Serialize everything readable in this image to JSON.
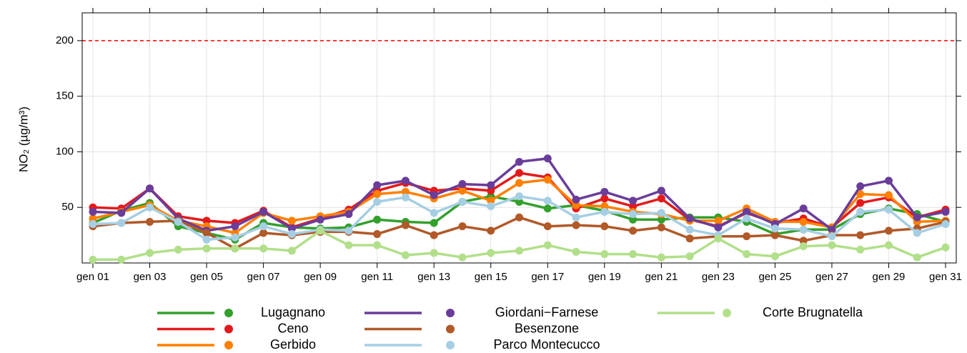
{
  "chart_data": {
    "type": "line",
    "y_label": "NO₂ (µg/m³)",
    "categories": [
      "gen 01",
      null,
      "gen 03",
      null,
      "gen 05",
      null,
      "gen 07",
      null,
      "gen 09",
      null,
      "gen 11",
      null,
      "gen 13",
      null,
      "gen 15",
      null,
      "gen 17",
      null,
      "gen 19",
      null,
      "gen 21",
      null,
      "gen 23",
      null,
      "gen 25",
      null,
      "gen 27",
      null,
      "gen 29",
      null,
      "gen 31"
    ],
    "ylim": [
      0,
      225
    ],
    "yticks": [
      50,
      100,
      150,
      200
    ],
    "grid": true,
    "threshold": {
      "value": 200,
      "color": "#ff0000"
    },
    "legend": "bottom",
    "series": [
      {
        "name": "Lugagnano",
        "color": "#33a02c",
        "values": [
          36,
          47,
          54,
          33,
          27,
          21,
          36,
          32,
          31,
          32,
          39,
          37,
          36,
          55,
          60,
          55,
          49,
          52,
          47,
          39,
          39,
          41,
          41,
          37,
          26,
          30,
          30,
          44,
          49,
          44,
          37
        ]
      },
      {
        "name": "Ceno",
        "color": "#e31a1c",
        "values": [
          50,
          49,
          67,
          42,
          38,
          36,
          47,
          32,
          40,
          48,
          65,
          72,
          65,
          67,
          65,
          81,
          77,
          49,
          58,
          51,
          58,
          39,
          33,
          45,
          36,
          40,
          32,
          54,
          59,
          41,
          48
        ]
      },
      {
        "name": "Gerbido",
        "color": "#ff7f00",
        "values": [
          40,
          46,
          52,
          38,
          33,
          27,
          45,
          38,
          42,
          46,
          62,
          64,
          58,
          65,
          56,
          72,
          75,
          52,
          51,
          46,
          44,
          38,
          38,
          49,
          37,
          37,
          32,
          62,
          61,
          37,
          38
        ]
      },
      {
        "name": "Giordani−Farnese",
        "color": "#6a3d9a",
        "values": [
          46,
          45,
          67,
          40,
          29,
          33,
          46,
          31,
          39,
          44,
          70,
          74,
          61,
          71,
          70,
          91,
          94,
          57,
          64,
          56,
          65,
          40,
          32,
          46,
          35,
          49,
          30,
          69,
          74,
          41,
          46
        ]
      },
      {
        "name": "Besenzone",
        "color": "#b15928",
        "values": [
          33,
          36,
          37,
          38,
          27,
          13,
          27,
          25,
          28,
          28,
          26,
          34,
          25,
          33,
          29,
          41,
          33,
          34,
          33,
          29,
          32,
          22,
          24,
          24,
          25,
          20,
          25,
          25,
          29,
          31,
          37
        ]
      },
      {
        "name": "Parco Montecucco",
        "color": "#a6cee3",
        "values": [
          35,
          36,
          50,
          37,
          21,
          23,
          33,
          26,
          30,
          29,
          55,
          59,
          45,
          55,
          51,
          60,
          56,
          41,
          46,
          44,
          45,
          30,
          25,
          40,
          31,
          30,
          24,
          46,
          48,
          27,
          35
        ]
      },
      {
        "name": "Corte Brugnatella",
        "color": "#b2df8a",
        "values": [
          3,
          3,
          9,
          12,
          13,
          13,
          13,
          11,
          29,
          16,
          16,
          7,
          9,
          5,
          9,
          11,
          16,
          10,
          8,
          8,
          5,
          6,
          22,
          8,
          6,
          15,
          16,
          12,
          16,
          5,
          14
        ]
      }
    ]
  }
}
